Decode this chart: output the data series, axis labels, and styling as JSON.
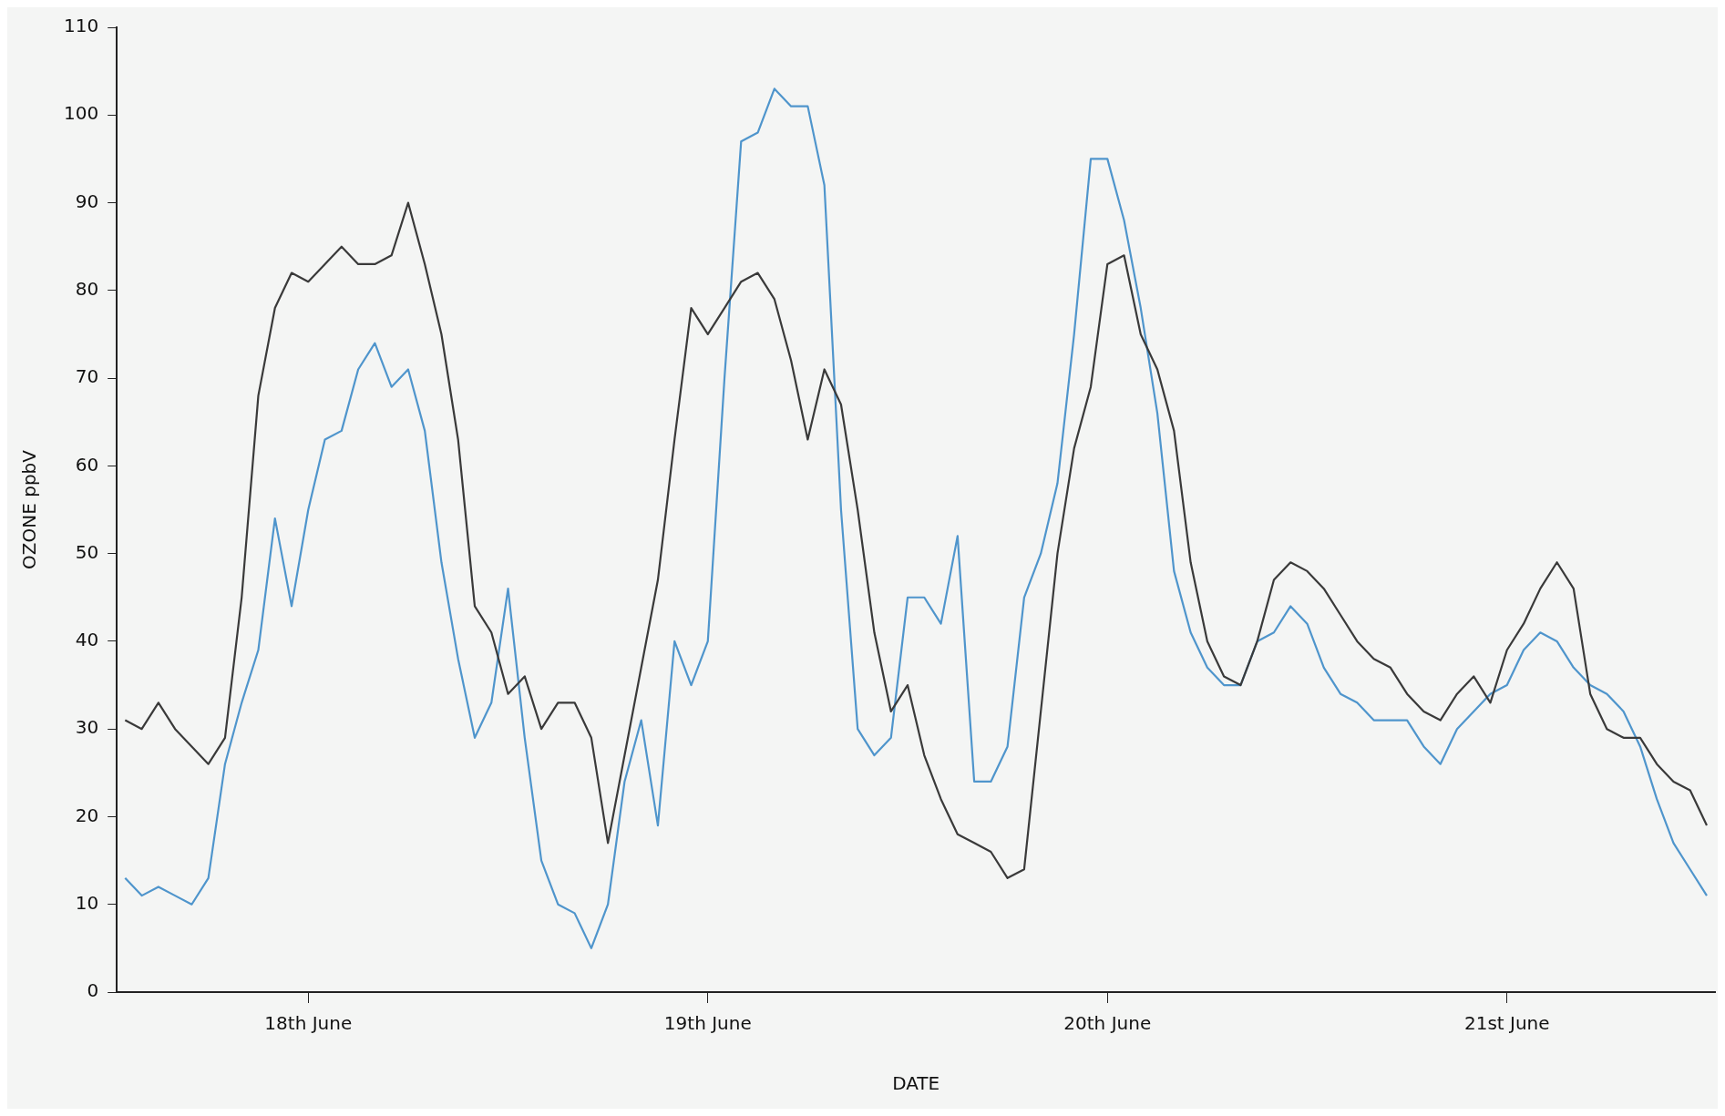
{
  "chart_data": {
    "type": "line",
    "xlabel": "DATE",
    "ylabel": "OZONE ppbV",
    "categories": [
      null,
      null,
      null,
      null,
      null,
      null,
      null,
      null,
      null,
      null,
      null,
      "18th June",
      null,
      null,
      null,
      null,
      null,
      null,
      null,
      null,
      null,
      null,
      null,
      null,
      null,
      null,
      null,
      null,
      null,
      null,
      null,
      null,
      null,
      null,
      null,
      "19th June",
      null,
      null,
      null,
      null,
      null,
      null,
      null,
      null,
      null,
      null,
      null,
      null,
      null,
      null,
      null,
      null,
      null,
      null,
      null,
      null,
      null,
      null,
      null,
      "20th June",
      null,
      null,
      null,
      null,
      null,
      null,
      null,
      null,
      null,
      null,
      null,
      null,
      null,
      null,
      null,
      null,
      null,
      null,
      null,
      null,
      null,
      null,
      null,
      "21st June",
      null,
      null,
      null,
      null,
      null,
      null,
      null,
      null,
      null,
      null,
      null,
      null
    ],
    "series": [
      {
        "color": "#3a3a3a",
        "values": [
          31,
          30,
          33,
          30,
          28,
          26,
          29,
          45,
          68,
          78,
          82,
          81,
          83,
          85,
          83,
          83,
          84,
          90,
          83,
          75,
          63,
          44,
          41,
          34,
          36,
          30,
          33,
          33,
          29,
          17,
          27,
          37,
          47,
          63,
          78,
          75,
          78,
          81,
          82,
          79,
          72,
          63,
          71,
          67,
          55,
          41,
          32,
          35,
          27,
          22,
          18,
          17,
          16,
          13,
          14,
          32,
          50,
          62,
          69,
          83,
          84,
          75,
          71,
          64,
          49,
          40,
          36,
          35,
          40,
          47,
          49,
          48,
          46,
          43,
          40,
          38,
          37,
          34,
          32,
          31,
          34,
          36,
          33,
          39,
          42,
          46,
          49,
          46,
          34,
          30,
          29,
          29,
          26,
          24,
          23,
          19
        ]
      },
      {
        "color": "#4f95cc",
        "values": [
          13,
          11,
          12,
          11,
          10,
          13,
          26,
          33,
          39,
          54,
          44,
          55,
          63,
          64,
          71,
          74,
          69,
          71,
          64,
          49,
          38,
          29,
          33,
          46,
          29,
          15,
          10,
          9,
          5,
          10,
          24,
          31,
          19,
          40,
          35,
          40,
          70,
          97,
          98,
          103,
          101,
          101,
          92,
          55,
          30,
          27,
          29,
          45,
          45,
          42,
          52,
          24,
          24,
          28,
          45,
          50,
          58,
          75,
          95,
          95,
          88,
          78,
          66,
          48,
          41,
          37,
          35,
          35,
          40,
          41,
          44,
          42,
          37,
          34,
          33,
          31,
          31,
          31,
          28,
          26,
          30,
          32,
          34,
          35,
          39,
          41,
          40,
          37,
          35,
          34,
          32,
          28,
          22,
          17,
          14,
          11
        ]
      }
    ],
    "ylim": [
      0,
      110
    ],
    "yticks": [
      0,
      10,
      20,
      30,
      40,
      50,
      60,
      70,
      80,
      90,
      100,
      110
    ],
    "grid": false,
    "legend": false,
    "marker": "none",
    "line_style": "solid"
  }
}
